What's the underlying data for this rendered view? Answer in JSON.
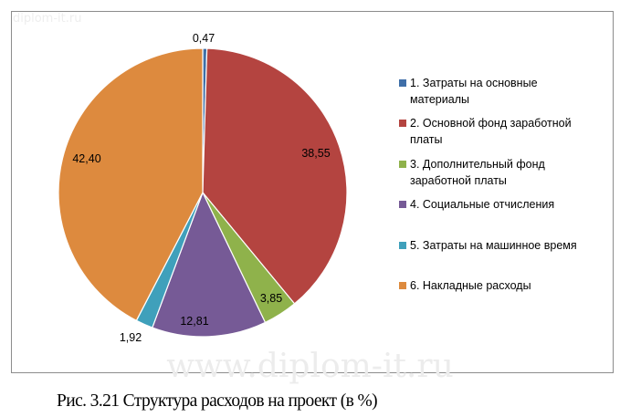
{
  "watermark": {
    "small": "diplom-it.ru",
    "large": "www.diplom-it.ru"
  },
  "caption": "Рис. 3.21 Структура расходов на проект (в %)",
  "chart_data": {
    "type": "pie",
    "title": "",
    "start": "top",
    "direction": "clockwise",
    "legend_position": "right",
    "slices": [
      {
        "label": "1. Затраты на основные материалы",
        "line1": "1. Затраты на основные",
        "line2": "материалы",
        "value": 0.47,
        "value_label": "0,47",
        "color": "#3f6fa8"
      },
      {
        "label": "2. Основной фонд заработной платы",
        "line1": "2. Основной фонд заработной",
        "line2": "платы",
        "value": 38.55,
        "value_label": "38,55",
        "color": "#b44440"
      },
      {
        "label": "3. Дополнительный фонд заработной платы",
        "line1": "3. Дополнительный фонд",
        "line2": "заработной платы",
        "value": 3.85,
        "value_label": "3,85",
        "color": "#8fb24b"
      },
      {
        "label": "4. Социальные отчисления",
        "line1": "4. Социальные отчисления",
        "line2": "",
        "value": 12.81,
        "value_label": "12,81",
        "color": "#765a96"
      },
      {
        "label": "5. Затраты на машинное время",
        "line1": "5. Затраты на машинное время",
        "line2": "",
        "value": 1.92,
        "value_label": "1,92",
        "color": "#3fa0bb"
      },
      {
        "label": "6. Накладные расходы",
        "line1": "6. Накладные расходы",
        "line2": "",
        "value": 42.4,
        "value_label": "42,40",
        "color": "#dd8a3e"
      }
    ]
  }
}
